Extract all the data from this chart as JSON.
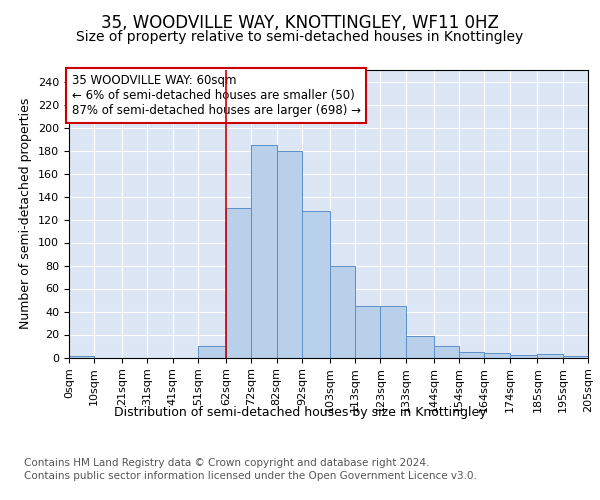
{
  "title": "35, WOODVILLE WAY, KNOTTINGLEY, WF11 0HZ",
  "subtitle": "Size of property relative to semi-detached houses in Knottingley",
  "xlabel": "Distribution of semi-detached houses by size in Knottingley",
  "ylabel": "Number of semi-detached properties",
  "footer_line1": "Contains HM Land Registry data © Crown copyright and database right 2024.",
  "footer_line2": "Contains public sector information licensed under the Open Government Licence v3.0.",
  "annotation_title": "35 WOODVILLE WAY: 60sqm",
  "annotation_line1": "← 6% of semi-detached houses are smaller (50)",
  "annotation_line2": "87% of semi-detached houses are larger (698) →",
  "bar_left_edges": [
    0,
    10,
    21,
    31,
    41,
    51,
    62,
    72,
    82,
    92,
    103,
    113,
    123,
    133,
    144,
    154,
    164,
    174,
    185,
    195
  ],
  "bar_widths": [
    10,
    11,
    10,
    10,
    10,
    11,
    10,
    10,
    10,
    11,
    10,
    10,
    10,
    11,
    10,
    10,
    10,
    11,
    10,
    10
  ],
  "bar_heights": [
    1,
    0,
    0,
    0,
    0,
    10,
    130,
    185,
    180,
    127,
    80,
    45,
    45,
    19,
    10,
    5,
    4,
    2,
    3,
    1
  ],
  "bar_color": "#b8d0ea",
  "bar_edge_color": "#5b8fc9",
  "vline_x": 62,
  "vline_color": "#cc0000",
  "ylim": [
    0,
    250
  ],
  "yticks": [
    0,
    20,
    40,
    60,
    80,
    100,
    120,
    140,
    160,
    180,
    200,
    220,
    240
  ],
  "xtick_labels": [
    "0sqm",
    "10sqm",
    "21sqm",
    "31sqm",
    "41sqm",
    "51sqm",
    "62sqm",
    "72sqm",
    "82sqm",
    "92sqm",
    "103sqm",
    "113sqm",
    "123sqm",
    "133sqm",
    "144sqm",
    "154sqm",
    "164sqm",
    "174sqm",
    "185sqm",
    "195sqm",
    "205sqm"
  ],
  "background_color": "#dce6f5",
  "grid_color": "#ffffff",
  "title_fontsize": 12,
  "subtitle_fontsize": 10,
  "axis_label_fontsize": 9,
  "tick_fontsize": 8,
  "annotation_fontsize": 8.5,
  "footer_fontsize": 7.5
}
